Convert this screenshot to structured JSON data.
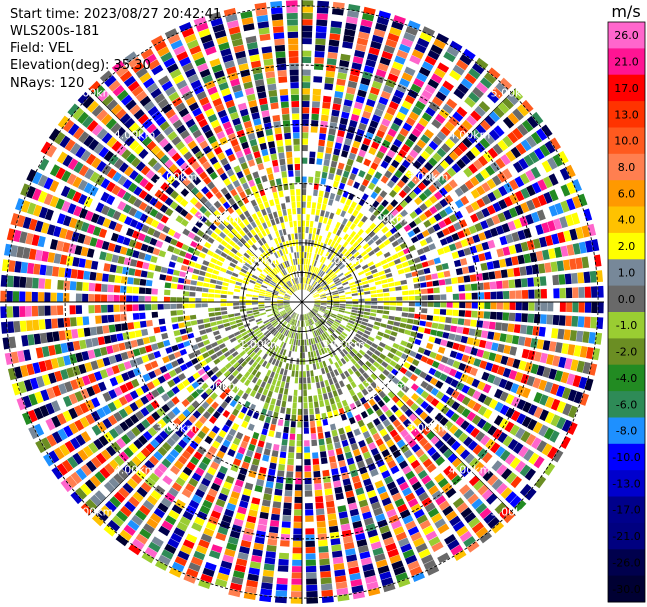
{
  "header": {
    "start_time": "Start time: 2023/08/27 20:42:41",
    "instrument": "WLS200s-181",
    "field": "Field: VEL",
    "elevation": "Elevation(deg): 35.30",
    "nrays": "NRays: 120"
  },
  "chart_data": {
    "type": "heatmap",
    "projection": "polar-ppi",
    "field": "VEL",
    "units": "m/s",
    "nrays": 120,
    "range_rings": [
      {
        "label": "1.00km",
        "km": 1
      },
      {
        "label": "2.00km",
        "km": 2
      },
      {
        "label": "3.00km",
        "km": 3
      },
      {
        "label": "4.00km",
        "km": 4
      },
      {
        "label": "5.00km",
        "km": 5
      }
    ],
    "max_range_km": 5.1,
    "colorbar": {
      "label": "m/s",
      "bins": [
        {
          "label": "26.0",
          "color": "#ff66cc"
        },
        {
          "label": "21.0",
          "color": "#ff1493"
        },
        {
          "label": "17.0",
          "color": "#ff0000"
        },
        {
          "label": "13.0",
          "color": "#ff3300"
        },
        {
          "label": "10.0",
          "color": "#ff5a1f"
        },
        {
          "label": "8.0",
          "color": "#ff7f50"
        },
        {
          "label": "6.0",
          "color": "#ff9900"
        },
        {
          "label": "4.0",
          "color": "#ffc200"
        },
        {
          "label": "2.0",
          "color": "#ffff00"
        },
        {
          "label": "1.0",
          "color": "#778899"
        },
        {
          "label": "0.0",
          "color": "#696969"
        },
        {
          "label": "-1.0",
          "color": "#9acd32"
        },
        {
          "label": "-2.0",
          "color": "#6b8e23"
        },
        {
          "label": "-4.0",
          "color": "#228b22"
        },
        {
          "label": "-6.0",
          "color": "#2e8b57"
        },
        {
          "label": "-8.0",
          "color": "#1e90ff"
        },
        {
          "label": "-10.0",
          "color": "#0000ff"
        },
        {
          "label": "-13.0",
          "color": "#0000cd"
        },
        {
          "label": "-17.0",
          "color": "#00008b"
        },
        {
          "label": "-21.0",
          "color": "#000080"
        },
        {
          "label": "-26.0",
          "color": "#00004d"
        },
        {
          "label": "-30.0",
          "color": "#000033"
        }
      ]
    }
  }
}
